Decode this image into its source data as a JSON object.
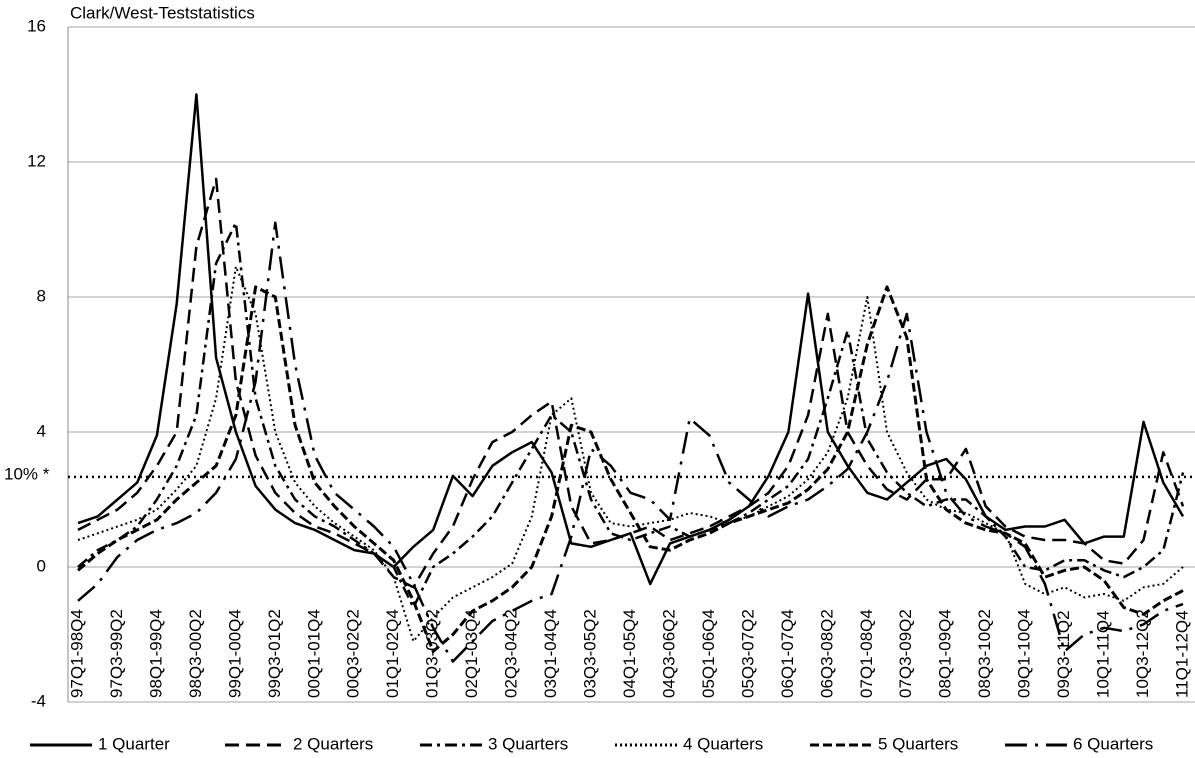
{
  "chart_data": {
    "type": "line",
    "y_label": "Clark/West-Teststatistics",
    "categories": [
      "97Q1-98Q4",
      null,
      "97Q3-99Q2",
      null,
      "98Q1-99Q4",
      null,
      "98Q3-00Q2",
      null,
      "99Q1-00Q4",
      null,
      "99Q3-01Q2",
      null,
      "00Q1-01Q4",
      null,
      "00Q3-02Q2",
      null,
      "01Q1-02Q4",
      null,
      "01Q3-03Q2",
      null,
      "02Q1-03Q4",
      null,
      "02Q3-04Q2",
      null,
      "03Q1-04Q4",
      null,
      "03Q3-05Q2",
      null,
      "04Q1-05Q4",
      null,
      "04Q3-06Q2",
      null,
      "05Q1-06Q4",
      null,
      "05Q3-07Q2",
      null,
      "06Q1-07Q4",
      null,
      "06Q3-08Q2",
      null,
      "07Q1-08Q4",
      null,
      "07Q3-09Q2",
      null,
      "08Q1-09Q4",
      null,
      "08Q3-10Q2",
      null,
      "09Q1-10Q4",
      null,
      "09Q3-11Q2",
      null,
      "10Q1-11Q4",
      null,
      "10Q3-12Q2",
      null,
      "11Q1-12Q4"
    ],
    "series": [
      {
        "name": "1 Quarter",
        "color": "#000000",
        "dash": "",
        "width": 2.5,
        "values": [
          1.3,
          1.5,
          2.0,
          2.5,
          3.9,
          7.8,
          14.0,
          6.2,
          4.0,
          2.4,
          1.7,
          1.3,
          1.1,
          0.8,
          0.5,
          0.4,
          0.0,
          0.6,
          1.1,
          2.7,
          2.1,
          3.0,
          3.4,
          3.7,
          2.8,
          0.7,
          0.6,
          0.8,
          1.0,
          -0.5,
          0.7,
          0.9,
          1.1,
          1.4,
          1.8,
          2.7,
          4.0,
          8.1,
          4.0,
          3.0,
          2.2,
          2.0,
          2.5,
          3.0,
          3.2,
          2.6,
          1.5,
          1.1,
          1.2,
          1.2,
          1.4,
          0.7,
          0.9,
          0.9,
          4.3,
          2.5,
          1.5
        ]
      },
      {
        "name": "2 Quarters",
        "color": "#000000",
        "dash": "14 7",
        "width": 2.5,
        "values": [
          1.1,
          1.4,
          1.7,
          2.2,
          3.0,
          4.0,
          9.5,
          11.5,
          5.5,
          3.3,
          2.2,
          1.6,
          1.2,
          1.0,
          0.7,
          0.4,
          -0.3,
          -0.6,
          0.4,
          1.2,
          2.6,
          3.7,
          4.0,
          4.5,
          4.9,
          1.8,
          0.7,
          0.8,
          1.0,
          1.2,
          0.8,
          1.0,
          1.2,
          1.5,
          1.8,
          2.2,
          3.0,
          4.5,
          7.5,
          4.0,
          3.0,
          2.3,
          2.0,
          2.6,
          2.6,
          3.5,
          1.8,
          1.2,
          0.9,
          0.8,
          0.8,
          0.7,
          0.2,
          0.1,
          0.8,
          3.4,
          1.8
        ]
      },
      {
        "name": "3 Quarters",
        "color": "#000000",
        "dash": "12 5 3 5",
        "width": 2.5,
        "values": [
          0.0,
          0.5,
          0.8,
          1.2,
          2.0,
          3.0,
          4.5,
          9.0,
          10.2,
          5.0,
          3.0,
          2.0,
          1.5,
          1.2,
          0.8,
          0.4,
          0.0,
          -1.2,
          0.0,
          0.4,
          0.9,
          1.5,
          2.5,
          3.5,
          4.5,
          4.0,
          2.0,
          1.0,
          0.8,
          1.0,
          1.2,
          0.9,
          1.1,
          1.3,
          1.6,
          2.0,
          2.4,
          3.2,
          5.0,
          7.0,
          3.8,
          2.8,
          2.2,
          1.8,
          2.0,
          2.0,
          1.5,
          0.9,
          0.0,
          -0.1,
          0.2,
          0.2,
          -0.1,
          -0.3,
          0.0,
          0.5,
          2.8
        ]
      },
      {
        "name": "4 Quarters",
        "color": "#000000",
        "dash": "2 3",
        "width": 2,
        "values": [
          0.8,
          1.0,
          1.2,
          1.4,
          1.7,
          2.3,
          3.0,
          5.0,
          8.9,
          7.5,
          4.0,
          2.5,
          1.8,
          1.3,
          0.9,
          0.5,
          -0.3,
          -2.2,
          -1.5,
          -0.9,
          -0.6,
          -0.3,
          0.1,
          1.5,
          4.5,
          5.0,
          2.2,
          1.3,
          1.2,
          1.3,
          1.4,
          1.6,
          1.5,
          1.3,
          1.5,
          1.8,
          2.1,
          2.6,
          3.4,
          5.0,
          8.0,
          4.0,
          2.8,
          2.0,
          1.7,
          1.6,
          1.3,
          1.0,
          -0.5,
          -0.8,
          -0.6,
          -0.9,
          -0.8,
          -1.0,
          -0.6,
          -0.5,
          0.0
        ]
      },
      {
        "name": "5 Quarters",
        "color": "#000000",
        "dash": "9 4",
        "width": 3,
        "values": [
          -0.1,
          0.4,
          0.8,
          1.1,
          1.4,
          2.0,
          2.5,
          3.0,
          4.5,
          8.3,
          8.0,
          4.2,
          2.5,
          1.8,
          1.2,
          0.7,
          0.2,
          -1.0,
          -2.5,
          -2.0,
          -1.3,
          -1.0,
          -0.6,
          0.0,
          1.5,
          4.2,
          4.0,
          2.6,
          1.6,
          0.6,
          0.5,
          0.8,
          1.0,
          1.3,
          1.5,
          1.7,
          1.9,
          2.3,
          2.9,
          4.0,
          6.6,
          8.3,
          6.8,
          2.6,
          1.7,
          1.3,
          1.1,
          1.0,
          0.7,
          -0.3,
          -0.1,
          0.0,
          -0.4,
          -1.2,
          -1.4,
          -1.0,
          -0.7
        ]
      },
      {
        "name": "6 Quarters",
        "color": "#000000",
        "dash": "22 8 3 8",
        "width": 2.5,
        "values": [
          -1.0,
          -0.5,
          0.3,
          0.8,
          1.1,
          1.3,
          1.6,
          2.2,
          3.2,
          5.5,
          10.2,
          6.0,
          3.3,
          2.2,
          1.7,
          1.2,
          0.6,
          -0.5,
          -1.8,
          -2.8,
          -2.2,
          -1.6,
          -1.3,
          -1.0,
          -0.8,
          0.9,
          3.5,
          3.0,
          2.2,
          2.0,
          1.4,
          4.4,
          3.9,
          2.5,
          2.0,
          1.5,
          1.8,
          2.0,
          2.4,
          2.9,
          4.0,
          5.5,
          7.5,
          4.0,
          2.2,
          1.5,
          1.2,
          1.0,
          0.6,
          -0.5,
          -2.5,
          -2.0,
          -1.8,
          -1.9,
          -1.7,
          -1.3,
          -1.1
        ]
      }
    ],
    "reference_line": {
      "label": "10% *",
      "value": 2.67
    },
    "ylim": [
      -4,
      16
    ],
    "yticks": [
      -4,
      0,
      4,
      8,
      12,
      16
    ],
    "grid": true,
    "legend": "bottom"
  }
}
